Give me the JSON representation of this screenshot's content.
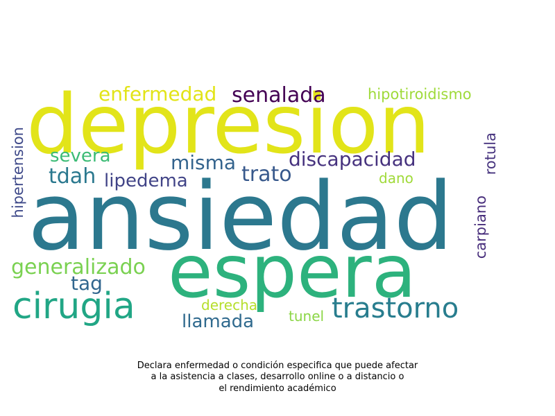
{
  "words": {
    "depresion": "depresion",
    "ansiedad": "ansiedad",
    "espera": "espera",
    "cirugia": "cirugia",
    "trastorno": "trastorno",
    "enfermedad": "enfermedad",
    "senalada": "senalada",
    "hipotiroidismo": "hipotiroidismo",
    "severa": "severa",
    "tdah": "tdah",
    "lipedema": "lipedema",
    "misma": "misma",
    "trato": "trato",
    "discapacidad": "discapacidad",
    "dano": "dano",
    "rotula": "rotula",
    "hipertension": "hipertension",
    "generalizado": "generalizado",
    "tag": "tag",
    "carpiano": "carpiano",
    "derecha": "derecha",
    "llamada": "llamada",
    "tunel": "tunel"
  },
  "colors": {
    "depresion": "#e2e419",
    "ansiedad": "#2c788e",
    "espera": "#2db27d",
    "cirugia": "#21a685",
    "trastorno": "#287d8e",
    "enfermedad": "#e2e418",
    "senalada": "#440154",
    "hipotiroidismo": "#9fda3a",
    "severa": "#3bbb75",
    "tdah": "#2a788e",
    "lipedema": "#414487",
    "misma": "#33638d",
    "trato": "#38598c",
    "discapacidad": "#46327e",
    "dano": "#a0da39",
    "rotula": "#46337e",
    "hipertension": "#3e4989",
    "generalizado": "#7ad151",
    "tag": "#31668e",
    "carpiano": "#472d7b",
    "derecha": "#b5de2b",
    "llamada": "#306a8e",
    "tunel": "#8bd646"
  },
  "caption": {
    "line1": "Declara enfermedad o condición especifica que puede afectar",
    "line2": "a la asistencia a clases, desarrollo online o a distancio o",
    "line3": "el rendimiento académico"
  }
}
